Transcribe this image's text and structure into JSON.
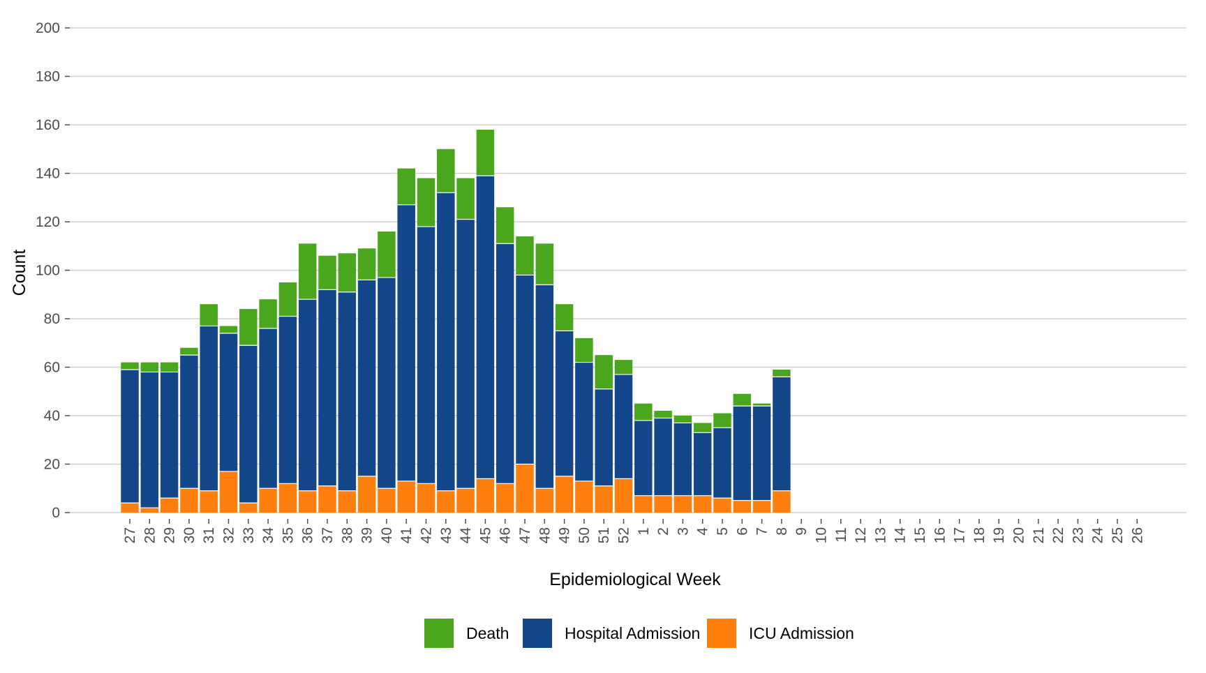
{
  "chart_data": {
    "type": "bar",
    "stacked": true,
    "xlabel": "Epidemiological Week",
    "ylabel": "Count",
    "ylim": [
      0,
      200
    ],
    "yticks": [
      0,
      20,
      40,
      60,
      80,
      100,
      120,
      140,
      160,
      180,
      200
    ],
    "grid": "horizontal",
    "legend_position": "bottom",
    "categories": [
      "27",
      "28",
      "29",
      "30",
      "31",
      "32",
      "33",
      "34",
      "35",
      "36",
      "37",
      "38",
      "39",
      "40",
      "41",
      "42",
      "43",
      "44",
      "45",
      "46",
      "47",
      "48",
      "49",
      "50",
      "51",
      "52",
      "1",
      "2",
      "3",
      "4",
      "5",
      "6",
      "7",
      "8",
      "9",
      "10",
      "11",
      "12",
      "13",
      "14",
      "15",
      "16",
      "17",
      "18",
      "19",
      "20",
      "21",
      "22",
      "23",
      "24",
      "25",
      "26"
    ],
    "series": [
      {
        "name": "ICU Admission",
        "color": "#ff7f0e",
        "values": [
          4,
          2,
          6,
          10,
          9,
          17,
          4,
          10,
          12,
          9,
          11,
          9,
          15,
          10,
          13,
          12,
          9,
          10,
          14,
          12,
          20,
          10,
          15,
          13,
          11,
          14,
          7,
          7,
          7,
          7,
          6,
          5,
          5,
          9,
          0,
          0,
          0,
          0,
          0,
          0,
          0,
          0,
          0,
          0,
          0,
          0,
          0,
          0,
          0,
          0,
          0,
          0
        ]
      },
      {
        "name": "Hospital Admission",
        "color": "#14468a",
        "values": [
          55,
          56,
          52,
          55,
          68,
          57,
          65,
          66,
          69,
          79,
          81,
          82,
          81,
          87,
          114,
          106,
          123,
          111,
          125,
          99,
          78,
          84,
          60,
          49,
          40,
          43,
          31,
          32,
          30,
          26,
          29,
          39,
          39,
          47,
          0,
          0,
          0,
          0,
          0,
          0,
          0,
          0,
          0,
          0,
          0,
          0,
          0,
          0,
          0,
          0,
          0,
          0
        ]
      },
      {
        "name": "Death",
        "color": "#4aa71d",
        "values": [
          3,
          4,
          4,
          3,
          9,
          3,
          15,
          12,
          14,
          23,
          14,
          16,
          13,
          19,
          15,
          20,
          18,
          17,
          19,
          15,
          16,
          17,
          11,
          10,
          14,
          6,
          7,
          3,
          3,
          4,
          6,
          5,
          1,
          3,
          0,
          0,
          0,
          0,
          0,
          0,
          0,
          0,
          0,
          0,
          0,
          0,
          0,
          0,
          0,
          0,
          0,
          0
        ]
      }
    ],
    "legend": [
      {
        "name": "Death",
        "color": "#4aa71d"
      },
      {
        "name": "Hospital Admission",
        "color": "#14468a"
      },
      {
        "name": "ICU Admission",
        "color": "#ff7f0e"
      }
    ]
  }
}
